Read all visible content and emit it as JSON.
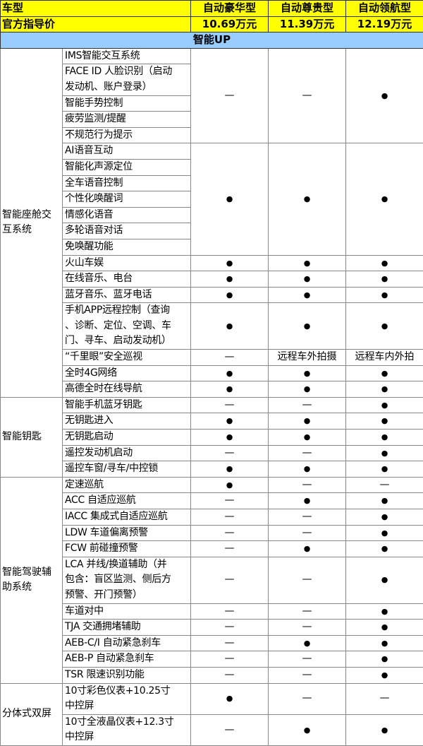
{
  "header": {
    "model_label": "车型",
    "models": [
      "自动豪华型",
      "自动尊贵型",
      "自动领航型"
    ],
    "price_label": "官方指导价",
    "prices": [
      "10.69万元",
      "11.39万元",
      "12.19万元"
    ]
  },
  "section_title": "智能UP",
  "symbols": {
    "yes": "●",
    "no": "—"
  },
  "groups": [
    {
      "category": "智能座舱交\n互系统",
      "rows": [
        {
          "items": [
            "IMS智能交互系统",
            "FACE ID 人脸识别（启动\n发动机、账户登录）",
            "智能手势控制",
            "疲劳监测/提醒",
            "不规范行为提示"
          ],
          "values": [
            "—",
            "—",
            "●"
          ]
        },
        {
          "items": [
            "AI语音互动",
            "智能化声源定位",
            "全车语音控制",
            "个性化唤醒词",
            "情感化语音",
            "多轮语音对话",
            "免唤醒功能"
          ],
          "values": [
            "●",
            "●",
            "●"
          ]
        },
        {
          "items": [
            "火山车娱"
          ],
          "values": [
            "●",
            "●",
            "●"
          ]
        },
        {
          "items": [
            "在线音乐、电台"
          ],
          "values": [
            "●",
            "●",
            "●"
          ]
        },
        {
          "items": [
            "蓝牙音乐、蓝牙电话"
          ],
          "values": [
            "●",
            "●",
            "●"
          ]
        },
        {
          "items": [
            "手机APP远程控制（查询\n、诊断、定位、空调、车\n门、寻车、启动发动机）"
          ],
          "values": [
            "●",
            "●",
            "●"
          ]
        },
        {
          "items": [
            "“千里眼”安全巡视"
          ],
          "values": [
            "—",
            "远程车外拍摄",
            "远程车内外拍"
          ]
        },
        {
          "items": [
            "全时4G网络"
          ],
          "values": [
            "●",
            "●",
            "●"
          ]
        },
        {
          "items": [
            "高德全时在线导航"
          ],
          "values": [
            "●",
            "●",
            "●"
          ]
        }
      ]
    },
    {
      "category": "智能钥匙",
      "rows": [
        {
          "items": [
            "智能手机蓝牙钥匙"
          ],
          "values": [
            "—",
            "—",
            "●"
          ]
        },
        {
          "items": [
            "无钥匙进入"
          ],
          "values": [
            "●",
            "●",
            "●"
          ]
        },
        {
          "items": [
            "无钥匙启动"
          ],
          "values": [
            "●",
            "●",
            "●"
          ]
        },
        {
          "items": [
            "遥控发动机启动"
          ],
          "values": [
            "—",
            "—",
            "●"
          ]
        },
        {
          "items": [
            "遥控车窗/寻车/中控锁"
          ],
          "values": [
            "●",
            "●",
            "●"
          ]
        }
      ]
    },
    {
      "category": "智能驾驶辅\n助系统",
      "rows": [
        {
          "items": [
            "定速巡航"
          ],
          "values": [
            "●",
            "—",
            "—"
          ]
        },
        {
          "items": [
            "ACC 自适应巡航"
          ],
          "values": [
            "—",
            "●",
            "●"
          ]
        },
        {
          "items": [
            "IACC 集成式自适应巡航"
          ],
          "values": [
            "—",
            "—",
            "●"
          ]
        },
        {
          "items": [
            "LDW 车道偏离预警"
          ],
          "values": [
            "—",
            "—",
            "●"
          ]
        },
        {
          "items": [
            "FCW 前碰撞预警"
          ],
          "values": [
            "—",
            "●",
            "●"
          ]
        },
        {
          "items": [
            "LCA 并线/换道辅助（并\n包含：盲区监测、侧后方\n预警、开门预警）"
          ],
          "values": [
            "—",
            "—",
            "●"
          ]
        },
        {
          "items": [
            "车道对中"
          ],
          "values": [
            "—",
            "—",
            "●"
          ]
        },
        {
          "items": [
            "TJA 交通拥堵辅助"
          ],
          "values": [
            "—",
            "—",
            "●"
          ]
        },
        {
          "items": [
            "AEB-C/I 自动紧急刹车"
          ],
          "values": [
            "—",
            "●",
            "●"
          ]
        },
        {
          "items": [
            "AEB-P 自动紧急刹车"
          ],
          "values": [
            "—",
            "—",
            "●"
          ]
        },
        {
          "items": [
            "TSR 限速识别功能"
          ],
          "values": [
            "—",
            "—",
            "●"
          ]
        }
      ]
    },
    {
      "category": "分体式双屏",
      "rows": [
        {
          "items": [
            "10寸彩色仪表+10.25寸\n中控屏"
          ],
          "values": [
            "●",
            "—",
            "—"
          ]
        },
        {
          "items": [
            "10寸全液晶仪表+12.3寸\n中控屏"
          ],
          "values": [
            "—",
            "●",
            "●"
          ]
        }
      ]
    }
  ]
}
